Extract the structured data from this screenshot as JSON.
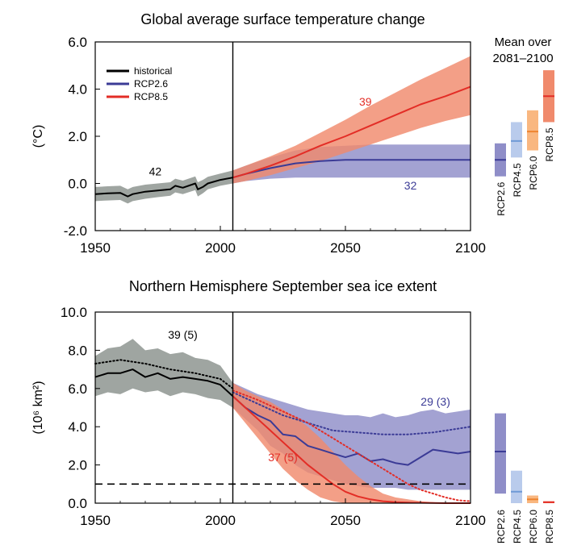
{
  "colors": {
    "historical": "#000000",
    "historical_band": "#9aa09c",
    "rcp26": "#3b3b96",
    "rcp26_band": "#8f8ec8",
    "rcp45": "#6f9ad6",
    "rcp45_band": "#b9cbec",
    "rcp60": "#ee8430",
    "rcp60_band": "#f9b780",
    "rcp85": "#e32d26",
    "rcp85_band": "#f08a6c"
  },
  "bars_header": [
    "Mean over",
    "2081–2100"
  ],
  "chart_data": [
    {
      "id": "temperature",
      "type": "line",
      "title": "Global average surface temperature change",
      "ylabel": "(°C)",
      "xlim": [
        1950,
        2100
      ],
      "ylim": [
        -2.0,
        6.0
      ],
      "xticks": [
        1950,
        2000,
        2050,
        2100
      ],
      "yticks": [
        -2.0,
        0.0,
        2.0,
        4.0,
        6.0
      ],
      "xtick_labels": [
        "1950",
        "2000",
        "2050",
        "2100"
      ],
      "ytick_labels": [
        "-2.0",
        "0.0",
        "2.0",
        "4.0",
        "6.0"
      ],
      "vline_x": 2005,
      "legend": {
        "placement": "top-left",
        "entries": [
          "historical",
          "RCP2.6",
          "RCP8.5"
        ]
      },
      "series": [
        {
          "name": "historical",
          "color_key": "historical",
          "x": [
            1950,
            1955,
            1960,
            1963,
            1965,
            1970,
            1975,
            1980,
            1982,
            1985,
            1990,
            1991,
            1993,
            1995,
            2000,
            2005
          ],
          "y": [
            -0.45,
            -0.42,
            -0.4,
            -0.55,
            -0.45,
            -0.35,
            -0.3,
            -0.25,
            -0.1,
            -0.18,
            0.0,
            -0.25,
            -0.15,
            0.0,
            0.15,
            0.25
          ],
          "lower": [
            -0.75,
            -0.72,
            -0.7,
            -0.85,
            -0.75,
            -0.65,
            -0.58,
            -0.52,
            -0.38,
            -0.45,
            -0.28,
            -0.55,
            -0.42,
            -0.25,
            -0.1,
            0.0
          ],
          "upper": [
            -0.15,
            -0.12,
            -0.1,
            -0.25,
            -0.15,
            -0.05,
            0.0,
            0.05,
            0.2,
            0.12,
            0.3,
            0.05,
            0.15,
            0.28,
            0.42,
            0.55
          ]
        },
        {
          "name": "RCP2.6",
          "color_key": "rcp26",
          "x": [
            2005,
            2010,
            2020,
            2030,
            2040,
            2050,
            2060,
            2070,
            2080,
            2090,
            2100
          ],
          "y": [
            0.25,
            0.4,
            0.65,
            0.85,
            0.95,
            1.0,
            1.0,
            1.0,
            1.0,
            1.0,
            1.0
          ],
          "lower": [
            0.0,
            0.1,
            0.2,
            0.25,
            0.25,
            0.25,
            0.25,
            0.25,
            0.25,
            0.25,
            0.25
          ],
          "upper": [
            0.55,
            0.75,
            1.1,
            1.4,
            1.55,
            1.6,
            1.65,
            1.65,
            1.65,
            1.65,
            1.65
          ]
        },
        {
          "name": "RCP8.5",
          "color_key": "rcp85",
          "x": [
            2005,
            2010,
            2020,
            2030,
            2040,
            2050,
            2060,
            2070,
            2080,
            2090,
            2100
          ],
          "y": [
            0.25,
            0.4,
            0.75,
            1.15,
            1.6,
            2.0,
            2.45,
            2.9,
            3.35,
            3.7,
            4.1
          ],
          "lower": [
            0.0,
            0.1,
            0.35,
            0.65,
            0.95,
            1.3,
            1.65,
            2.0,
            2.35,
            2.65,
            2.9
          ],
          "upper": [
            0.55,
            0.75,
            1.15,
            1.6,
            2.15,
            2.7,
            3.3,
            3.85,
            4.4,
            4.9,
            5.4
          ]
        }
      ],
      "annotations": [
        {
          "text": "42",
          "x": 1974,
          "y": 0.35,
          "color_key": "historical"
        },
        {
          "text": "39",
          "x": 2058,
          "y": 3.3,
          "color_key": "rcp85"
        },
        {
          "text": "32",
          "x": 2076,
          "y": -0.25,
          "color_key": "rcp26"
        }
      ],
      "mean_bars": [
        {
          "name": "RCP2.6",
          "mean": 1.0,
          "low": 0.3,
          "high": 1.7,
          "color_key": "rcp26",
          "band_key": "rcp26_band"
        },
        {
          "name": "RCP4.5",
          "mean": 1.8,
          "low": 1.1,
          "high": 2.6,
          "color_key": "rcp45",
          "band_key": "rcp45_band"
        },
        {
          "name": "RCP6.0",
          "mean": 2.2,
          "low": 1.4,
          "high": 3.1,
          "color_key": "rcp60",
          "band_key": "rcp60_band"
        },
        {
          "name": "RCP8.5",
          "mean": 3.7,
          "low": 2.6,
          "high": 4.8,
          "color_key": "rcp85",
          "band_key": "rcp85_band"
        }
      ]
    },
    {
      "id": "seaice",
      "type": "line",
      "title": "Northern Hemisphere September sea ice extent",
      "ylabel": "(10⁶ km²)",
      "xlim": [
        1950,
        2100
      ],
      "ylim": [
        0.0,
        10.0
      ],
      "xticks": [
        1950,
        2000,
        2050,
        2100
      ],
      "yticks": [
        0.0,
        2.0,
        4.0,
        6.0,
        8.0,
        10.0
      ],
      "xtick_labels": [
        "1950",
        "2000",
        "2050",
        "2100"
      ],
      "ytick_labels": [
        "0.0",
        "2.0",
        "4.0",
        "6.0",
        "8.0",
        "10.0"
      ],
      "vline_x": 2005,
      "hline_y": 1.0,
      "series": [
        {
          "name": "historical",
          "color_key": "historical",
          "x": [
            1950,
            1955,
            1960,
            1965,
            1970,
            1975,
            1980,
            1985,
            1990,
            1995,
            2000,
            2005
          ],
          "y": [
            6.6,
            6.8,
            6.8,
            7.0,
            6.6,
            6.8,
            6.5,
            6.6,
            6.5,
            6.4,
            6.2,
            5.6
          ],
          "lower": [
            5.6,
            5.8,
            5.7,
            6.0,
            5.8,
            5.9,
            5.6,
            5.8,
            5.7,
            5.5,
            5.4,
            5.0
          ],
          "upper": [
            7.7,
            8.1,
            8.2,
            8.6,
            8.0,
            8.1,
            7.8,
            7.9,
            7.6,
            7.5,
            7.2,
            6.3
          ]
        },
        {
          "name": "historical (5)",
          "color_key": "historical",
          "dotted": true,
          "x": [
            1950,
            1960,
            1970,
            1980,
            1990,
            2000,
            2005
          ],
          "y": [
            7.3,
            7.5,
            7.3,
            7.0,
            6.8,
            6.5,
            6.0
          ]
        },
        {
          "name": "RCP2.6",
          "color_key": "rcp26",
          "x": [
            2005,
            2010,
            2015,
            2020,
            2025,
            2030,
            2035,
            2040,
            2045,
            2050,
            2055,
            2060,
            2065,
            2070,
            2075,
            2080,
            2085,
            2090,
            2095,
            2100
          ],
          "y": [
            5.6,
            5.0,
            4.6,
            4.3,
            3.6,
            3.5,
            3.0,
            2.8,
            2.6,
            2.4,
            2.6,
            2.2,
            2.3,
            2.1,
            2.0,
            2.4,
            2.8,
            2.7,
            2.6,
            2.7
          ],
          "lower": [
            5.0,
            4.4,
            3.8,
            3.0,
            2.6,
            2.0,
            1.6,
            1.4,
            1.2,
            1.0,
            0.9,
            0.8,
            0.8,
            0.8,
            0.7,
            0.7,
            0.7,
            0.7,
            0.7,
            0.7
          ],
          "upper": [
            6.3,
            6.0,
            5.7,
            5.5,
            5.3,
            5.1,
            4.9,
            4.8,
            4.7,
            4.6,
            4.6,
            4.5,
            4.7,
            4.5,
            4.6,
            4.8,
            4.9,
            4.7,
            4.8,
            4.9
          ]
        },
        {
          "name": "RCP2.6 (3)",
          "color_key": "rcp26",
          "dotted": true,
          "x": [
            2005,
            2015,
            2025,
            2035,
            2045,
            2055,
            2065,
            2075,
            2085,
            2095,
            2100
          ],
          "y": [
            5.8,
            5.2,
            4.6,
            4.2,
            3.8,
            3.7,
            3.6,
            3.6,
            3.7,
            3.9,
            4.0
          ]
        },
        {
          "name": "RCP8.5",
          "color_key": "rcp85",
          "x": [
            2005,
            2010,
            2015,
            2020,
            2025,
            2030,
            2035,
            2040,
            2045,
            2050,
            2055,
            2060,
            2065,
            2070,
            2075,
            2080,
            2085,
            2090,
            2095,
            2100
          ],
          "y": [
            5.6,
            5.0,
            4.4,
            3.8,
            3.2,
            2.6,
            2.0,
            1.5,
            1.0,
            0.6,
            0.35,
            0.2,
            0.1,
            0.05,
            0.03,
            0.02,
            0.01,
            0.0,
            0.0,
            0.0
          ],
          "lower": [
            5.0,
            4.2,
            3.4,
            2.6,
            1.8,
            1.2,
            0.7,
            0.3,
            0.1,
            0.0,
            0.0,
            0.0,
            0.0,
            0.0,
            0.0,
            0.0,
            0.0,
            0.0,
            0.0,
            0.0
          ],
          "upper": [
            6.3,
            5.9,
            5.6,
            5.3,
            4.9,
            4.5,
            4.0,
            3.4,
            2.7,
            2.0,
            1.4,
            0.9,
            0.5,
            0.3,
            0.2,
            0.1,
            0.05,
            0.0,
            0.0,
            0.0
          ]
        },
        {
          "name": "RCP8.5 (5)",
          "color_key": "rcp85",
          "dotted": true,
          "x": [
            2005,
            2015,
            2025,
            2035,
            2045,
            2055,
            2060,
            2065,
            2070,
            2075,
            2080,
            2085,
            2090,
            2095,
            2100
          ],
          "y": [
            5.9,
            5.4,
            4.8,
            4.2,
            3.4,
            2.6,
            2.2,
            1.8,
            1.4,
            1.0,
            0.7,
            0.5,
            0.3,
            0.15,
            0.1
          ]
        }
      ],
      "annotations": [
        {
          "text": "39 (5)",
          "x": 1985,
          "y": 8.6,
          "color_key": "historical"
        },
        {
          "text": "29 (3)",
          "x": 2086,
          "y": 5.1,
          "color_key": "rcp26"
        },
        {
          "text": "37 (5)",
          "x": 2025,
          "y": 2.2,
          "color_key": "rcp85"
        }
      ],
      "mean_bars": [
        {
          "name": "RCP2.6",
          "mean": 2.7,
          "low": 0.5,
          "high": 4.7,
          "color_key": "rcp26",
          "band_key": "rcp26_band"
        },
        {
          "name": "RCP4.5",
          "mean": 0.6,
          "low": 0.0,
          "high": 1.7,
          "color_key": "rcp45",
          "band_key": "rcp45_band"
        },
        {
          "name": "RCP6.0",
          "mean": 0.2,
          "low": 0.0,
          "high": 0.4,
          "color_key": "rcp60",
          "band_key": "rcp60_band"
        },
        {
          "name": "RCP8.5",
          "mean": 0.05,
          "low": 0.0,
          "high": 0.1,
          "color_key": "rcp85",
          "band_key": "rcp85_band"
        }
      ]
    }
  ]
}
